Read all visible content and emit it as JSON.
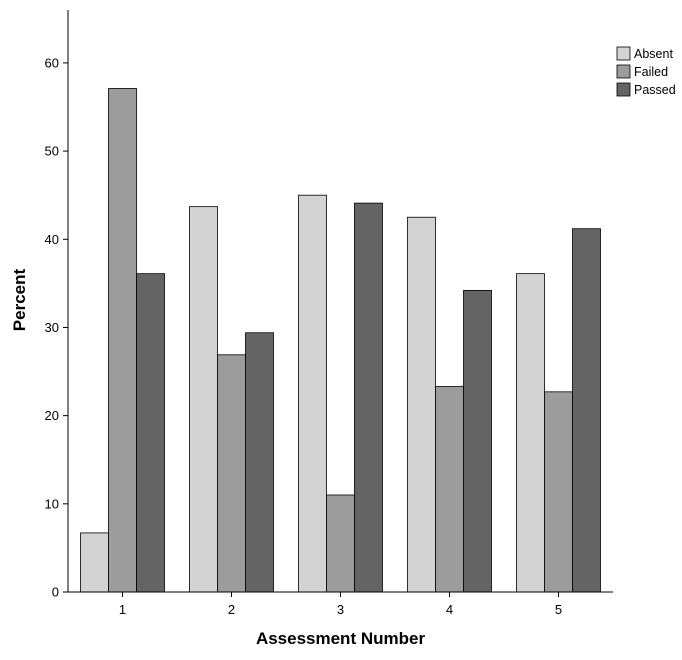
{
  "chart_data": {
    "type": "bar",
    "title": "",
    "xlabel": "Assessment Number",
    "ylabel": "Percent",
    "categories": [
      "1",
      "2",
      "3",
      "4",
      "5"
    ],
    "series": [
      {
        "name": "Absent",
        "values": [
          6.7,
          43.7,
          45.0,
          42.5,
          36.1
        ],
        "color": "#d3d3d3"
      },
      {
        "name": "Failed",
        "values": [
          57.1,
          26.9,
          11.0,
          23.3,
          22.7
        ],
        "color": "#9c9c9c"
      },
      {
        "name": "Passed",
        "values": [
          36.1,
          29.4,
          44.1,
          34.2,
          41.2
        ],
        "color": "#646464"
      }
    ],
    "ylim": [
      0,
      66
    ],
    "yticks": [
      "0",
      "10",
      "20",
      "30",
      "40",
      "50",
      "60"
    ],
    "grid": false,
    "legend_position": "top-right"
  }
}
